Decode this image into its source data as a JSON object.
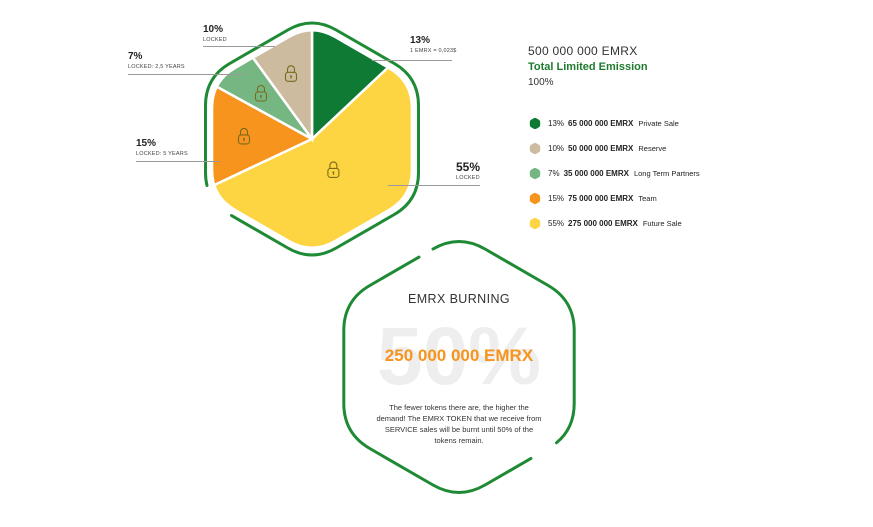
{
  "chart_data": {
    "type": "pie",
    "series": [
      {
        "percent": 13,
        "percent_label": "13%",
        "amount": "65 000 000 EMRX",
        "name": "Private Sale",
        "note": "1 EMRX = 0,023$",
        "color": "#0e7a34"
      },
      {
        "percent": 55,
        "percent_label": "55%",
        "amount": "275 000 000 EMRX",
        "name": "Future Sale",
        "note": "LOCKED",
        "color": "#fdd441"
      },
      {
        "percent": 15,
        "percent_label": "15%",
        "amount": "75 000 000 EMRX",
        "name": "Team",
        "note": "LOCKED: 5 YEARS",
        "color": "#f7941d"
      },
      {
        "percent": 7,
        "percent_label": "7%",
        "amount": "35 000 000 EMRX",
        "name": "Long Term Partners",
        "note": "LOCKED: 2,5 YEARS",
        "color": "#76b682"
      },
      {
        "percent": 10,
        "percent_label": "10%",
        "amount": "50 000 000 EMRX",
        "name": "Reserve",
        "note": "LOCKED",
        "color": "#cdbba0"
      }
    ],
    "legend_order": [
      0,
      4,
      3,
      2,
      1
    ],
    "outline_color": "#1f8a34"
  },
  "emission": {
    "total": "500 000 000 EMRX",
    "title": "Total Limited Emission",
    "percent": "100%"
  },
  "burning": {
    "title": "EMRX BURNING",
    "background_text": "50%",
    "amount": "250 000 000 EMRX",
    "description": "The fewer tokens there are, the higher the demand! The EMRX TOKEN that we receive from SERVICE sales will be burnt until 50% of the tokens remain."
  },
  "colors": {
    "accent_green": "#1f7a2e",
    "burn_orange": "#f7941d",
    "lock_icon": "#7a6a1a"
  },
  "icons": {
    "slice_lock": "lock-icon",
    "legend_marker": "hexagon-icon"
  }
}
